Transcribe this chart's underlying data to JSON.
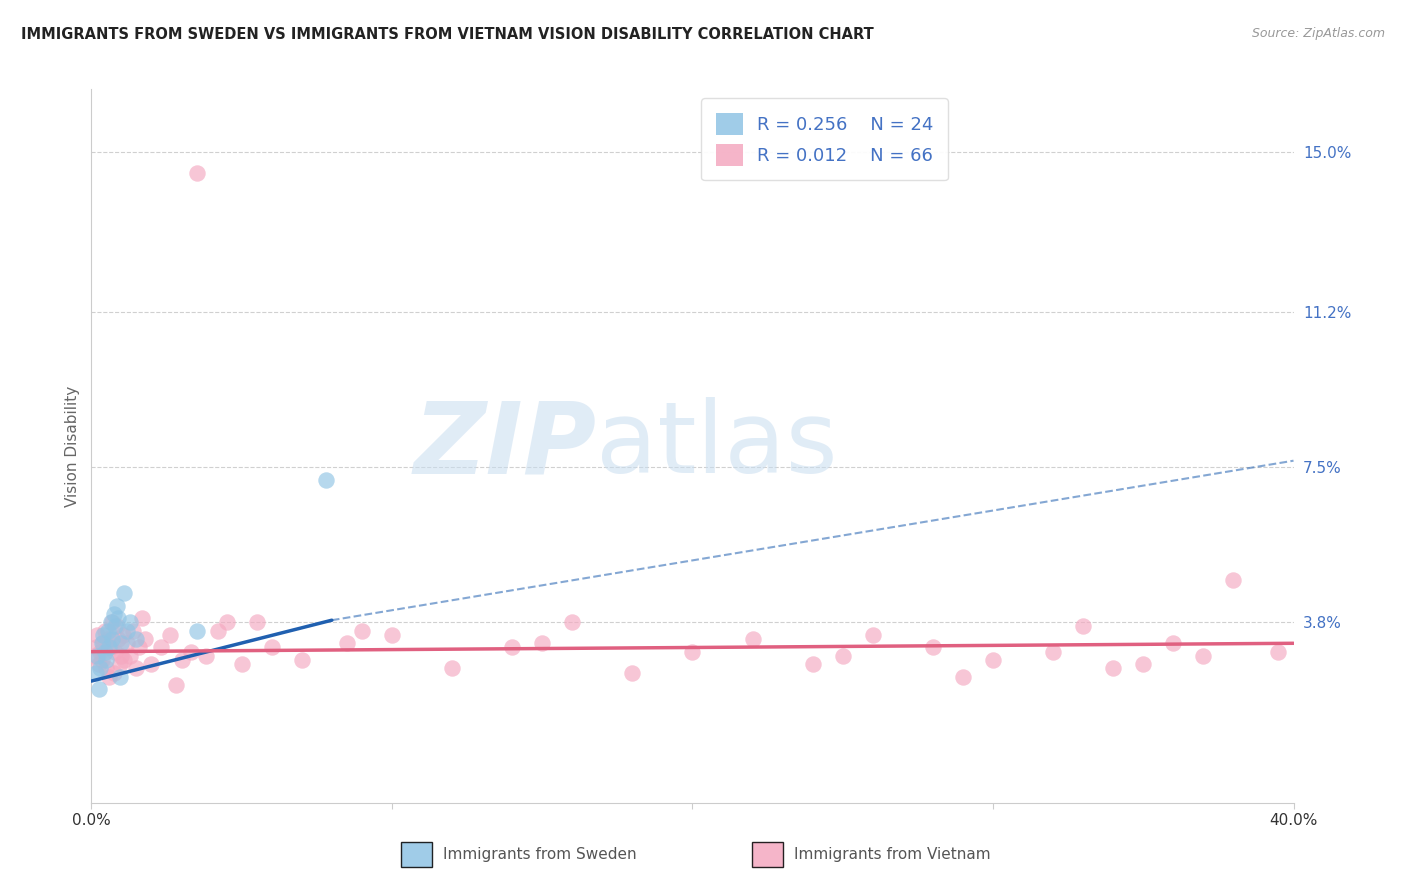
{
  "title": "IMMIGRANTS FROM SWEDEN VS IMMIGRANTS FROM VIETNAM VISION DISABILITY CORRELATION CHART",
  "source": "Source: ZipAtlas.com",
  "ylabel": "Vision Disability",
  "xlim": [
    0.0,
    40.0
  ],
  "ylim": [
    -0.5,
    16.5
  ],
  "yticks": [
    3.8,
    7.5,
    11.2,
    15.0
  ],
  "ytick_labels": [
    "3.8%",
    "7.5%",
    "11.2%",
    "15.0%"
  ],
  "sweden_color": "#90c4e4",
  "vietnam_color": "#f4a8c0",
  "sweden_line_color": "#2060b0",
  "vietnam_line_color": "#e06080",
  "sweden_R": "0.256",
  "sweden_N": "24",
  "vietnam_R": "0.012",
  "vietnam_N": "66",
  "watermark_zip": "ZIP",
  "watermark_atlas": "atlas",
  "background_color": "#ffffff",
  "grid_color": "#d0d0d0",
  "sweden_line_x0": 0.0,
  "sweden_line_y0": 2.4,
  "sweden_line_x1": 8.0,
  "sweden_line_y1": 3.85,
  "sweden_dash_x0": 8.0,
  "sweden_dash_y0": 3.85,
  "sweden_dash_x1": 40.0,
  "sweden_dash_y1": 7.65,
  "vietnam_line_x0": 0.0,
  "vietnam_line_y0": 3.1,
  "vietnam_line_x1": 40.0,
  "vietnam_line_y1": 3.3,
  "sweden_x": [
    0.15,
    0.2,
    0.25,
    0.3,
    0.35,
    0.4,
    0.45,
    0.5,
    0.55,
    0.6,
    0.65,
    0.7,
    0.75,
    0.8,
    0.85,
    0.9,
    0.95,
    1.0,
    1.1,
    1.2,
    1.3,
    1.5,
    3.5,
    7.8
  ],
  "sweden_y": [
    2.6,
    3.0,
    2.2,
    2.7,
    3.3,
    3.5,
    3.1,
    2.9,
    3.6,
    3.2,
    3.8,
    3.4,
    4.0,
    3.7,
    4.2,
    3.9,
    2.5,
    3.3,
    4.5,
    3.6,
    3.8,
    3.4,
    3.6,
    7.2
  ],
  "vietnam_outlier_x": 3.5,
  "vietnam_outlier_y": 14.5,
  "vietnam_x": [
    0.1,
    0.15,
    0.2,
    0.25,
    0.3,
    0.35,
    0.4,
    0.45,
    0.5,
    0.55,
    0.6,
    0.65,
    0.7,
    0.75,
    0.8,
    0.85,
    0.9,
    0.95,
    1.0,
    1.05,
    1.1,
    1.2,
    1.3,
    1.4,
    1.5,
    1.6,
    1.8,
    2.0,
    2.3,
    2.6,
    3.0,
    3.3,
    3.8,
    4.2,
    5.0,
    6.0,
    7.0,
    8.5,
    10.0,
    12.0,
    14.0,
    16.0,
    18.0,
    20.0,
    22.0,
    24.0,
    25.0,
    26.0,
    28.0,
    30.0,
    32.0,
    33.0,
    35.0,
    36.0,
    37.0,
    38.0,
    39.5,
    1.7,
    2.8,
    4.5,
    5.5,
    9.0,
    15.0,
    29.0,
    34.0
  ],
  "vietnam_y": [
    3.0,
    3.2,
    3.5,
    2.8,
    3.1,
    2.9,
    3.3,
    3.6,
    2.7,
    3.4,
    2.5,
    3.2,
    3.8,
    2.6,
    3.1,
    3.7,
    3.4,
    2.8,
    3.0,
    3.5,
    2.9,
    3.3,
    3.0,
    3.6,
    2.7,
    3.2,
    3.4,
    2.8,
    3.2,
    3.5,
    2.9,
    3.1,
    3.0,
    3.6,
    2.8,
    3.2,
    2.9,
    3.3,
    3.5,
    2.7,
    3.2,
    3.8,
    2.6,
    3.1,
    3.4,
    2.8,
    3.0,
    3.5,
    3.2,
    2.9,
    3.1,
    3.7,
    2.8,
    3.3,
    3.0,
    4.8,
    3.1,
    3.9,
    2.3,
    3.8,
    3.8,
    3.6,
    3.3,
    2.5,
    2.7
  ]
}
